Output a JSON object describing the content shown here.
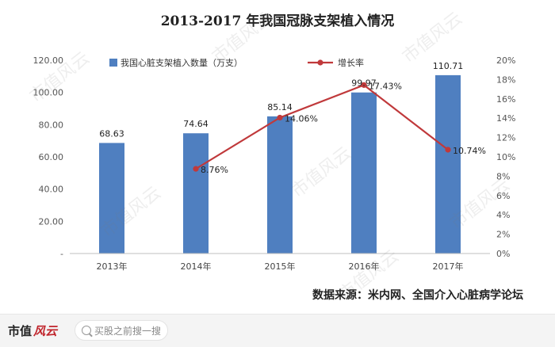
{
  "chart_data": {
    "type": "bar",
    "title": "2013-2017 年我国冠脉支架植入情况",
    "categories": [
      "2013年",
      "2014年",
      "2015年",
      "2016年",
      "2017年"
    ],
    "series": [
      {
        "name": "我国心脏支架植入数量（万支）",
        "type": "bar",
        "axis": "left",
        "values": [
          68.63,
          74.64,
          85.14,
          99.97,
          110.71
        ],
        "labels": [
          "68.63",
          "74.64",
          "85.14",
          "99.97",
          "110.71"
        ]
      },
      {
        "name": "增长率",
        "type": "line",
        "axis": "right",
        "values": [
          null,
          8.76,
          14.06,
          17.43,
          10.74
        ],
        "labels": [
          "",
          "8.76%",
          "14.06%",
          "17.43%",
          "10.74%"
        ]
      }
    ],
    "left_axis": {
      "ylim": [
        0,
        120
      ],
      "ticks": [
        "-",
        "20.00",
        "40.00",
        "60.00",
        "80.00",
        "100.00",
        "120.00"
      ]
    },
    "right_axis": {
      "ylim": [
        0,
        20
      ],
      "ticks": [
        "0%",
        "2%",
        "4%",
        "6%",
        "8%",
        "10%",
        "12%",
        "14%",
        "16%",
        "18%",
        "20%"
      ]
    },
    "legend_position": "top",
    "source": "数据来源：米内网、全国介入心脏病学论坛",
    "colors": {
      "bar": "#4f7fc0",
      "line": "#c0393b"
    }
  },
  "watermark": "市值风云",
  "footer": {
    "brand_text": "市值",
    "brand_logo_text": "风云",
    "search_placeholder": "买股之前搜一搜"
  }
}
